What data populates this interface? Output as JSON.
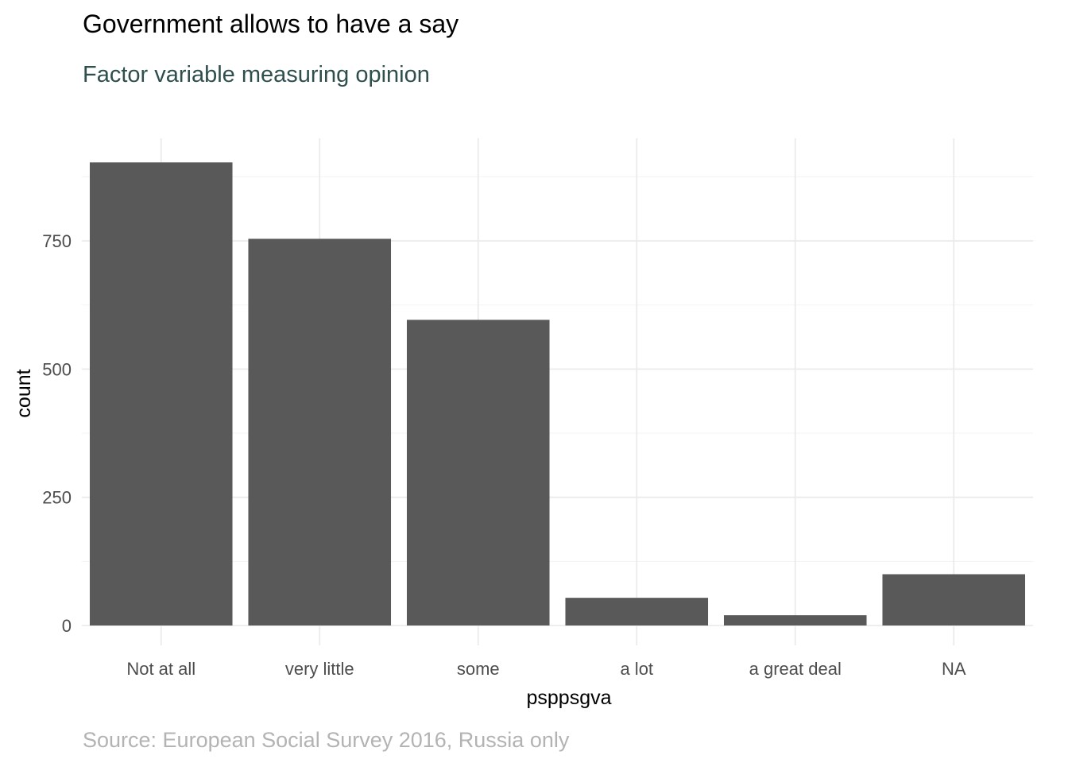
{
  "chart_data": {
    "type": "bar",
    "title": "Government allows to have a say",
    "subtitle": "Factor variable measuring opinion",
    "caption": "Source: European Social Survey 2016, Russia only",
    "xlabel": "psppsgva",
    "ylabel": "count",
    "categories": [
      "Not at all",
      "very little",
      "some",
      "a lot",
      "a great deal",
      "NA"
    ],
    "values": [
      903,
      754,
      596,
      54,
      20,
      100
    ],
    "ylim": [
      0,
      950
    ],
    "yticks": [
      0,
      250,
      500,
      750
    ],
    "ytick_labels": [
      "0",
      "250",
      "500",
      "750"
    ],
    "grid": true,
    "legend": "none",
    "colors": {
      "bar": "#595959",
      "grid": "#ebebeb",
      "subtitle": "#2f4f4f",
      "caption": "#b3b3b3"
    }
  }
}
